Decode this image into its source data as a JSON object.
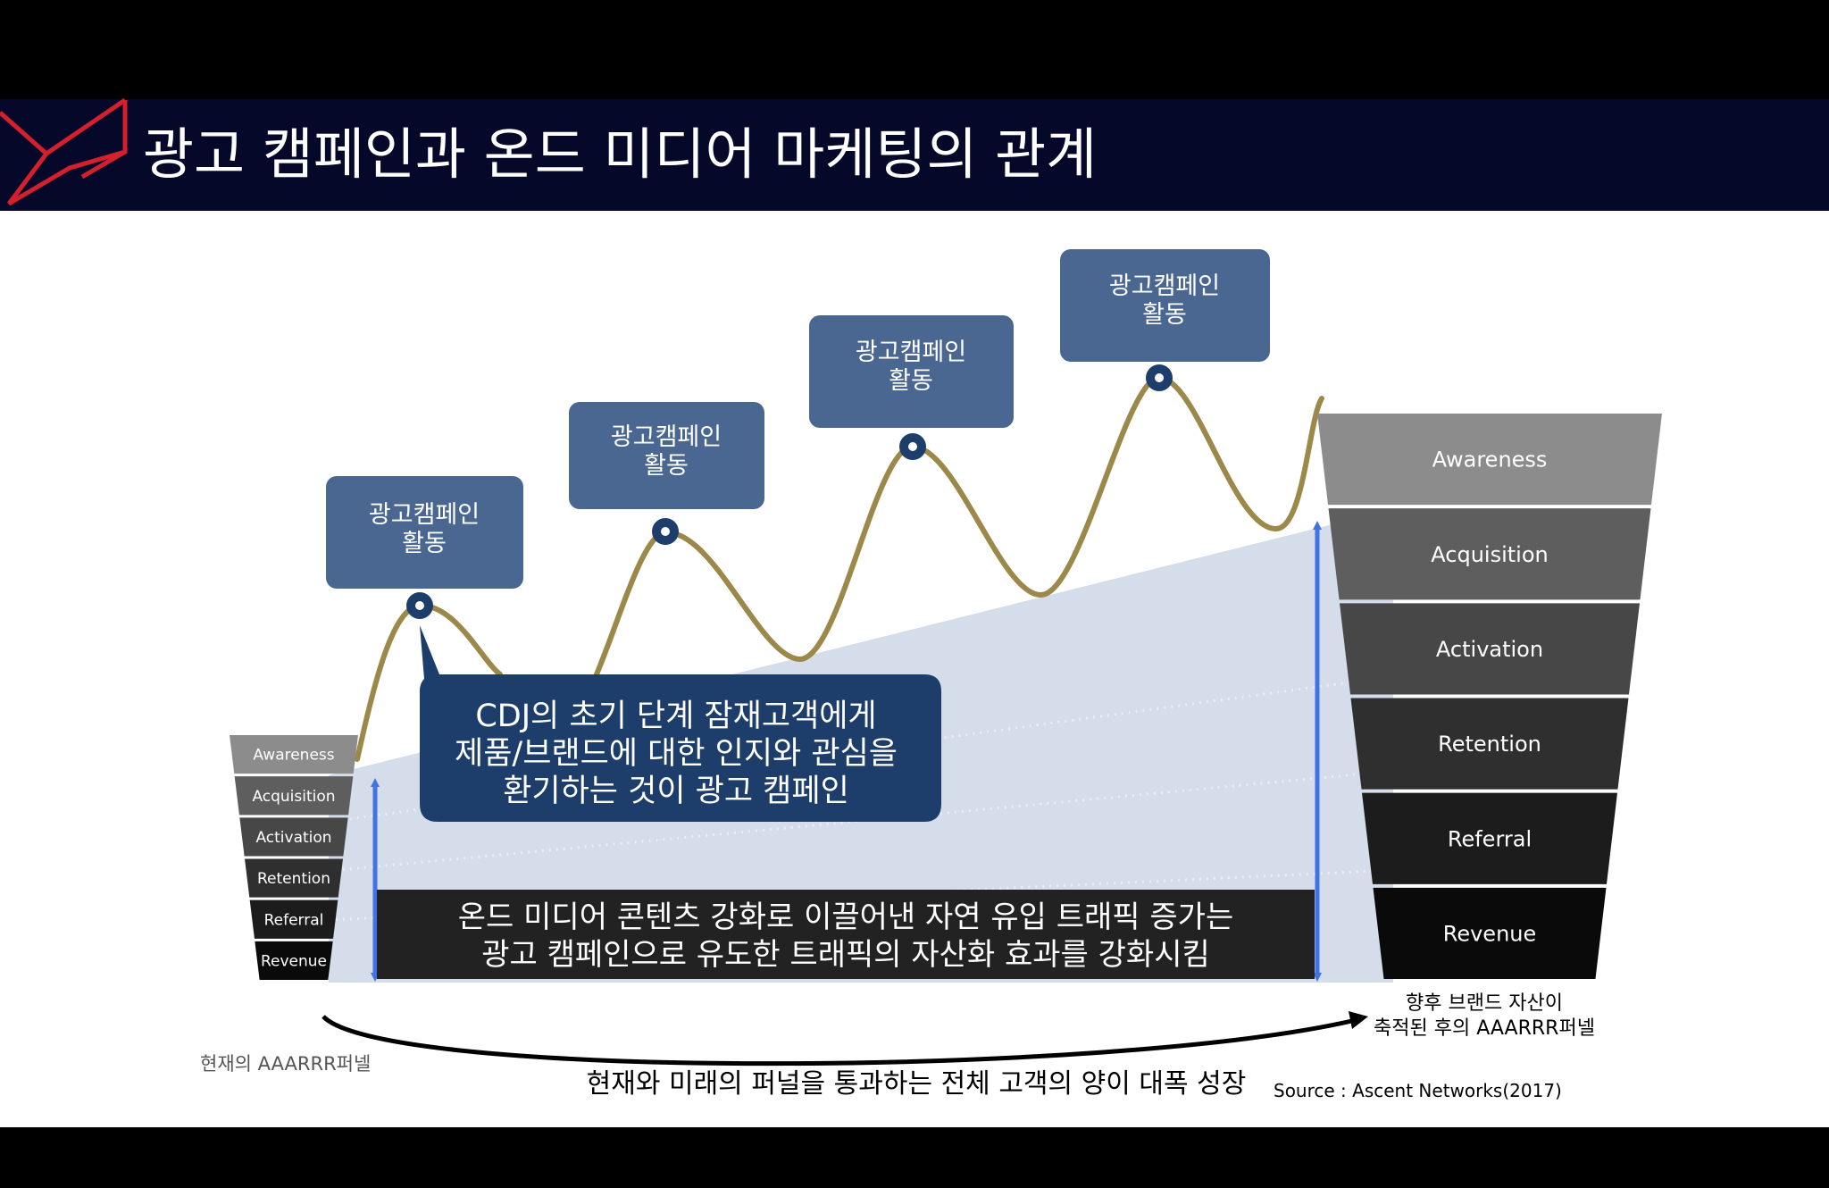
{
  "slide": {
    "title": "광고 캠페인과 온드 미디어 마케팅의 관계",
    "colors": {
      "header_bg": "#06082a",
      "logo_accent": "#d4202c",
      "campaign_box": "#4a6791",
      "wave_line": "#9c8848",
      "highlight_area": "#d4dde9",
      "blue_arrow": "#4173e6",
      "callout_box": "#1d3d6b",
      "dark_box": "#222222"
    },
    "campaign_labels": [
      {
        "line1": "광고캠페인",
        "line2": "활동"
      },
      {
        "line1": "광고캠페인",
        "line2": "활동"
      },
      {
        "line1": "광고캠페인",
        "line2": "활동"
      },
      {
        "line1": "광고캠페인",
        "line2": "활동"
      }
    ],
    "callout": {
      "lines": [
        "CDJ의 초기 단계 잠재고객에게",
        "제품/브랜드에 대한 인지와 관심을",
        "환기하는 것이 광고 캠페인"
      ]
    },
    "owned_media_box": {
      "lines": [
        "온드 미디어 콘텐츠 강화로 이끌어낸 자연 유입 트래픽 증가는",
        "광고 캠페인으로 유도한 트래픽의 자산화 효과를 강화시킴"
      ]
    },
    "small_funnel": {
      "stages": [
        {
          "label": "Awareness",
          "color": "#8c8c8c"
        },
        {
          "label": "Acquisition",
          "color": "#5e5e5e"
        },
        {
          "label": "Activation",
          "color": "#474747"
        },
        {
          "label": "Retention",
          "color": "#2f2f2f"
        },
        {
          "label": "Referral",
          "color": "#1c1c1c"
        },
        {
          "label": "Revenue",
          "color": "#0a0a0a"
        }
      ],
      "caption": "현재의 AAARRR퍼넬"
    },
    "large_funnel": {
      "stages": [
        {
          "label": "Awareness",
          "color": "#8c8c8c"
        },
        {
          "label": "Acquisition",
          "color": "#5e5e5e"
        },
        {
          "label": "Activation",
          "color": "#474747"
        },
        {
          "label": "Retention",
          "color": "#2f2f2f"
        },
        {
          "label": "Referral",
          "color": "#1c1c1c"
        },
        {
          "label": "Revenue",
          "color": "#0a0a0a"
        }
      ],
      "caption": {
        "line1": "향후 브랜드 자산이",
        "line2": "축적된 후의 AAARRR퍼넬"
      }
    },
    "bottom_caption": "현재와 미래의 퍼널을 통과하는 전체 고객의 양이 대폭 성장",
    "source": "Source : Ascent Networks(2017)"
  }
}
